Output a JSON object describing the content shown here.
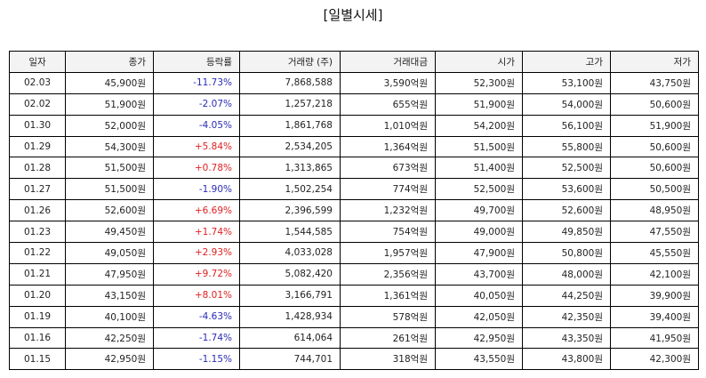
{
  "title": "[일별시세]",
  "headers": [
    "일자",
    "종가",
    "등락률",
    "거래량 (주)",
    "거래대금",
    "시가",
    "고가",
    "저가"
  ],
  "colors": {
    "up": "#e02020",
    "down": "#2a2ab8"
  },
  "rows": [
    {
      "date": "02.03",
      "close": "45,900원",
      "change": "-11.73%",
      "dir": "down",
      "volume": "7,868,588",
      "value": "3,590억원",
      "open": "52,300원",
      "high": "53,100원",
      "low": "43,750원"
    },
    {
      "date": "02.02",
      "close": "51,900원",
      "change": "-2.07%",
      "dir": "down",
      "volume": "1,257,218",
      "value": "655억원",
      "open": "51,900원",
      "high": "54,000원",
      "low": "50,600원"
    },
    {
      "date": "01.30",
      "close": "52,000원",
      "change": "-4.05%",
      "dir": "down",
      "volume": "1,861,768",
      "value": "1,010억원",
      "open": "54,200원",
      "high": "56,100원",
      "low": "51,900원"
    },
    {
      "date": "01.29",
      "close": "54,300원",
      "change": "+5.84%",
      "dir": "up",
      "volume": "2,534,205",
      "value": "1,364억원",
      "open": "51,500원",
      "high": "55,800원",
      "low": "50,600원"
    },
    {
      "date": "01.28",
      "close": "51,500원",
      "change": "+0.78%",
      "dir": "up",
      "volume": "1,313,865",
      "value": "673억원",
      "open": "51,400원",
      "high": "52,500원",
      "low": "50,600원"
    },
    {
      "date": "01.27",
      "close": "51,500원",
      "change": "-1.90%",
      "dir": "down",
      "volume": "1,502,254",
      "value": "774억원",
      "open": "52,500원",
      "high": "53,600원",
      "low": "50,500원"
    },
    {
      "date": "01.26",
      "close": "52,600원",
      "change": "+6.69%",
      "dir": "up",
      "volume": "2,396,599",
      "value": "1,232억원",
      "open": "49,700원",
      "high": "52,600원",
      "low": "48,950원"
    },
    {
      "date": "01.23",
      "close": "49,450원",
      "change": "+1.74%",
      "dir": "up",
      "volume": "1,544,585",
      "value": "754억원",
      "open": "49,000원",
      "high": "49,850원",
      "low": "47,550원"
    },
    {
      "date": "01.22",
      "close": "49,050원",
      "change": "+2.93%",
      "dir": "up",
      "volume": "4,033,028",
      "value": "1,957억원",
      "open": "47,900원",
      "high": "50,800원",
      "low": "45,550원"
    },
    {
      "date": "01.21",
      "close": "47,950원",
      "change": "+9.72%",
      "dir": "up",
      "volume": "5,082,420",
      "value": "2,356억원",
      "open": "43,700원",
      "high": "48,000원",
      "low": "42,100원"
    },
    {
      "date": "01.20",
      "close": "43,150원",
      "change": "+8.01%",
      "dir": "up",
      "volume": "3,166,791",
      "value": "1,361억원",
      "open": "40,050원",
      "high": "44,250원",
      "low": "39,900원"
    },
    {
      "date": "01.19",
      "close": "40,100원",
      "change": "-4.63%",
      "dir": "down",
      "volume": "1,428,934",
      "value": "578억원",
      "open": "42,050원",
      "high": "42,350원",
      "low": "39,400원"
    },
    {
      "date": "01.16",
      "close": "42,250원",
      "change": "-1.74%",
      "dir": "down",
      "volume": "614,064",
      "value": "261억원",
      "open": "42,950원",
      "high": "43,350원",
      "low": "41,950원"
    },
    {
      "date": "01.15",
      "close": "42,950원",
      "change": "-1.15%",
      "dir": "down",
      "volume": "744,701",
      "value": "318억원",
      "open": "43,550원",
      "high": "43,800원",
      "low": "42,300원"
    }
  ]
}
